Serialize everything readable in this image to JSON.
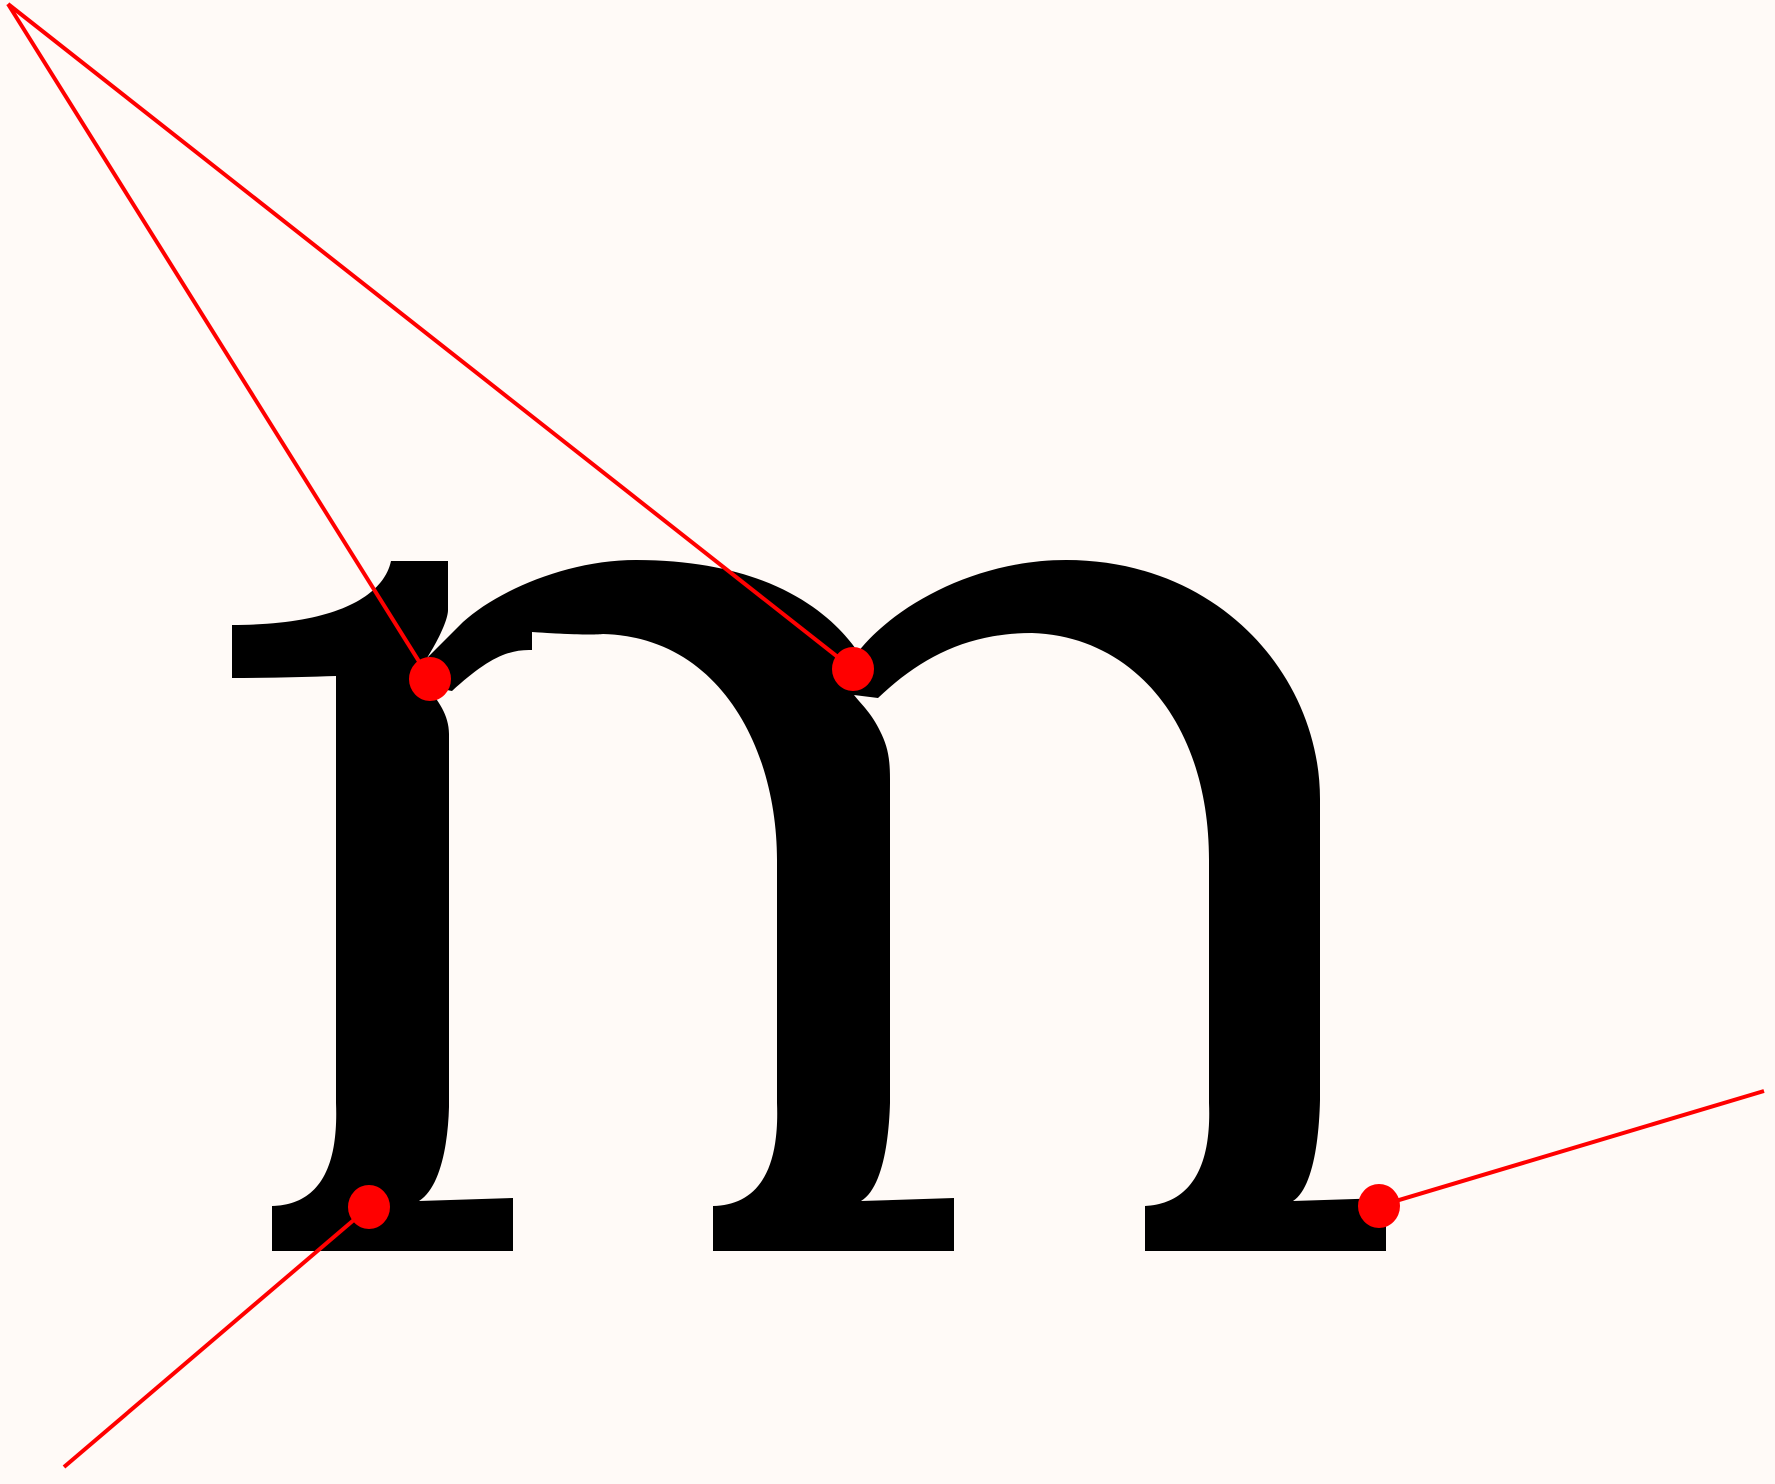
{
  "diagram": {
    "glyph": "m",
    "colors": {
      "background": "#fffaf7",
      "glyph": "#000000",
      "construction_lines": "#ff0000",
      "control_points": "#ff0000"
    },
    "construction_elements": [
      "line-left-shoulder",
      "line-middle-shoulder",
      "line-left-foot",
      "line-right-foot"
    ],
    "control_point_count": 4
  }
}
